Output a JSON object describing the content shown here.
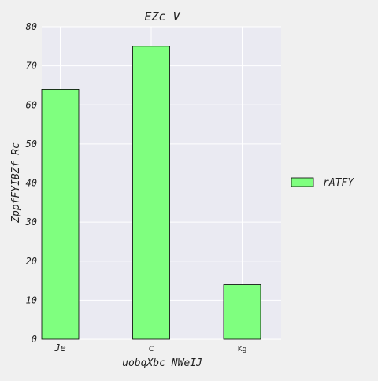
{
  "chart_data": {
    "type": "bar",
    "title": "EZc V",
    "xlabel": "uobqXbc NWeIJ",
    "ylabel": "ZppfFYIBZf Rc",
    "categories": [
      "Je",
      "C",
      "Kg"
    ],
    "series": [
      {
        "name": "rATFY",
        "values": [
          64,
          75,
          14
        ]
      }
    ],
    "ylim": [
      0,
      80
    ],
    "yticks": [
      0,
      10,
      20,
      30,
      40,
      50,
      60,
      70,
      80
    ],
    "grid": true,
    "legend": "right",
    "colors": {
      "bar_fill": "#7fff7f",
      "bar_edge": "#000000",
      "plot_bg": "#eaeaf2",
      "grid": "#ffffff",
      "page_bg": "#f0f0f0"
    }
  }
}
